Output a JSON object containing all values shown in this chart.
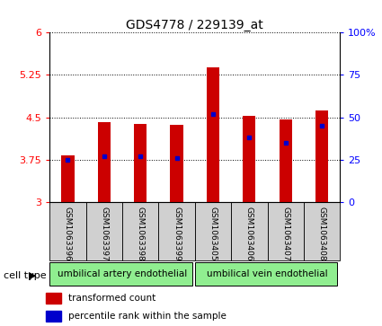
{
  "title": "GDS4778 / 229139_at",
  "samples": [
    "GSM1063396",
    "GSM1063397",
    "GSM1063398",
    "GSM1063399",
    "GSM1063405",
    "GSM1063406",
    "GSM1063407",
    "GSM1063408"
  ],
  "transformed_count": [
    3.82,
    4.42,
    4.38,
    4.37,
    5.38,
    4.52,
    4.47,
    4.62
  ],
  "percentile_rank": [
    25,
    27,
    27,
    26,
    52,
    38,
    35,
    45
  ],
  "cell_type_groups": [
    {
      "label": "umbilical artery endothelial",
      "indices": [
        0,
        1,
        2,
        3
      ],
      "color": "#90EE90"
    },
    {
      "label": "umbilical vein endothelial",
      "indices": [
        4,
        5,
        6,
        7
      ],
      "color": "#90EE90"
    }
  ],
  "ylim": [
    3,
    6
  ],
  "yticks_left": [
    3,
    3.75,
    4.5,
    5.25,
    6
  ],
  "yticks_right": [
    0,
    25,
    50,
    75,
    100
  ],
  "bar_color": "#cc0000",
  "percentile_color": "#0000cc",
  "bg_color": "#ffffff",
  "gray_box_color": "#d0d0d0",
  "bar_width": 0.35,
  "legend_items": [
    {
      "label": "transformed count",
      "color": "#cc0000"
    },
    {
      "label": "percentile rank within the sample",
      "color": "#0000cc"
    }
  ]
}
